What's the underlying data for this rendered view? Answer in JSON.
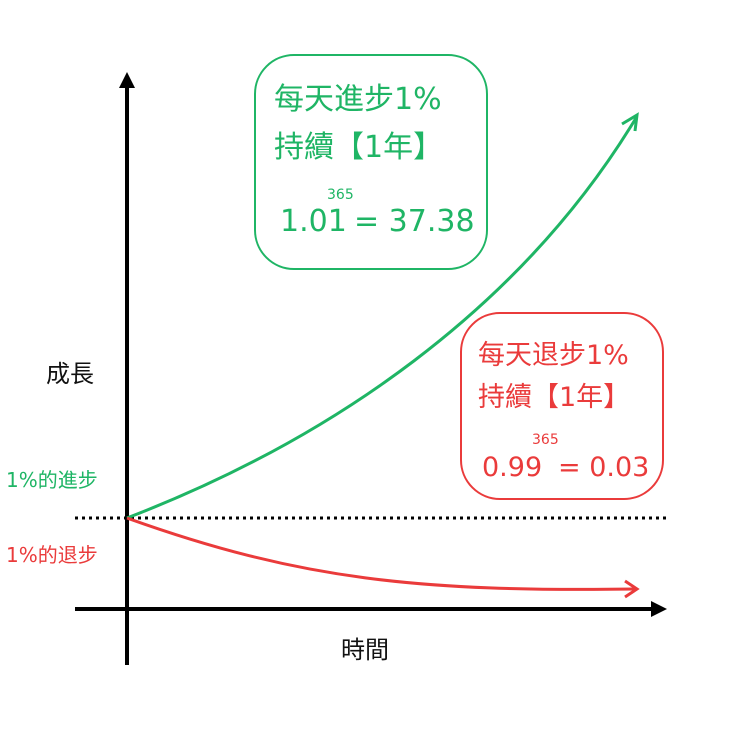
{
  "axes": {
    "y_label": "成長",
    "x_label": "時間"
  },
  "growth": {
    "side_label": "1%的進步",
    "line1": "每天進步1%",
    "line2": "持續【1年】",
    "base": "1.01",
    "exponent": "365",
    "result": "= 37.38",
    "color": "#1fb565"
  },
  "decline": {
    "side_label": "1%的退步",
    "line1": "每天退步1%",
    "line2": "持續【1年】",
    "base": "0.99",
    "exponent": "365",
    "result": "= 0.03",
    "color": "#ea3b3b"
  }
}
